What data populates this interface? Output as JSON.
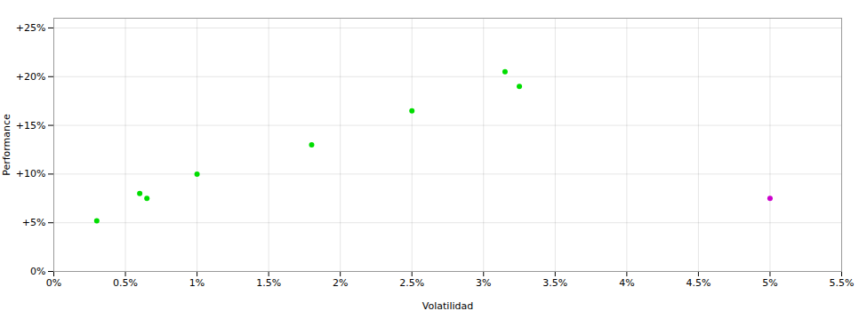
{
  "chart_data": {
    "type": "scatter",
    "xlabel": "Volatilidad",
    "ylabel": "Performance",
    "series": [
      {
        "color": "#00dd00",
        "marker": "circle",
        "x": [
          0.003,
          0.006,
          0.0065,
          0.01,
          0.018,
          0.025,
          0.0315,
          0.0325
        ],
        "values": [
          0.052,
          0.08,
          0.075,
          0.1,
          0.13,
          0.165,
          0.205,
          0.19
        ]
      },
      {
        "color": "#cc00cc",
        "marker": "circle",
        "x": [
          0.05
        ],
        "values": [
          0.075
        ]
      }
    ],
    "xlim": [
      0.0,
      0.055
    ],
    "ylim": [
      0.0,
      0.26
    ],
    "xticks": [
      {
        "value": 0.0,
        "label": "0%"
      },
      {
        "value": 0.005,
        "label": "0.5%"
      },
      {
        "value": 0.01,
        "label": "1%"
      },
      {
        "value": 0.015,
        "label": "1.5%"
      },
      {
        "value": 0.02,
        "label": "2%"
      },
      {
        "value": 0.025,
        "label": "2.5%"
      },
      {
        "value": 0.03,
        "label": "3%"
      },
      {
        "value": 0.035,
        "label": "3.5%"
      },
      {
        "value": 0.04,
        "label": "4%"
      },
      {
        "value": 0.045,
        "label": "4.5%"
      },
      {
        "value": 0.05,
        "label": "5%"
      },
      {
        "value": 0.055,
        "label": "5.5%"
      }
    ],
    "yticks": [
      {
        "value": 0.0,
        "label": "0%"
      },
      {
        "value": 0.05,
        "label": "+5%"
      },
      {
        "value": 0.1,
        "label": "+10%"
      },
      {
        "value": 0.15,
        "label": "+15%"
      },
      {
        "value": 0.2,
        "label": "+20%"
      },
      {
        "value": 0.25,
        "label": "+25%"
      }
    ],
    "grid": true
  }
}
